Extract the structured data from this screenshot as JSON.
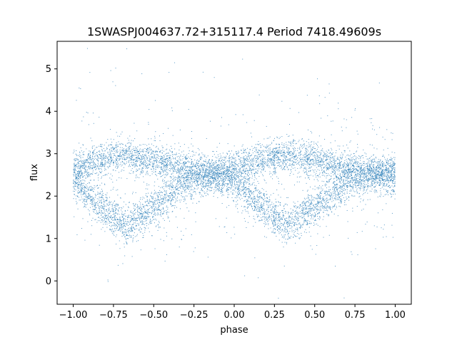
{
  "chart_data": {
    "type": "scatter",
    "title": "1SWASPJ004637.72+315117.4 Period 7418.49609s",
    "xlabel": "phase",
    "ylabel": "flux",
    "xlim": [
      -1.1,
      1.1
    ],
    "ylim": [
      -0.55,
      5.65
    ],
    "x_ticks": [
      -1.0,
      -0.75,
      -0.5,
      -0.25,
      0.0,
      0.25,
      0.5,
      0.75,
      1.0
    ],
    "x_tick_labels": [
      "−1.00",
      "−0.75",
      "−0.50",
      "−0.25",
      "0.00",
      "0.25",
      "0.50",
      "0.75",
      "1.00"
    ],
    "y_ticks": [
      0,
      1,
      2,
      3,
      4,
      5
    ],
    "y_tick_labels": [
      "0",
      "1",
      "2",
      "3",
      "4",
      "5"
    ],
    "grid": false,
    "legend": "none",
    "point_color": "#1f77b4",
    "series": [
      {
        "phase_range": [
          -1.0,
          1.0
        ],
        "description_points": [
          {
            "phase": -1.0,
            "upper": 2.65,
            "lower": 2.35
          },
          {
            "phase": -0.85,
            "upper": 2.85,
            "lower": 1.8
          },
          {
            "phase": -0.67,
            "upper": 2.95,
            "lower": 1.3
          },
          {
            "phase": -0.5,
            "upper": 2.85,
            "lower": 1.75
          },
          {
            "phase": -0.3,
            "upper": 2.65,
            "lower": 2.3
          },
          {
            "phase": -0.15,
            "upper": 2.55,
            "lower": 2.5
          },
          {
            "phase": 0.0,
            "upper": 2.65,
            "lower": 2.35
          },
          {
            "phase": 0.15,
            "upper": 2.85,
            "lower": 1.8
          },
          {
            "phase": 0.33,
            "upper": 2.95,
            "lower": 1.3
          },
          {
            "phase": 0.5,
            "upper": 2.85,
            "lower": 1.75
          },
          {
            "phase": 0.7,
            "upper": 2.65,
            "lower": 2.3
          },
          {
            "phase": 0.85,
            "upper": 2.55,
            "lower": 2.5
          },
          {
            "phase": 1.0,
            "upper": 2.6,
            "lower": 2.4
          }
        ]
      }
    ]
  }
}
